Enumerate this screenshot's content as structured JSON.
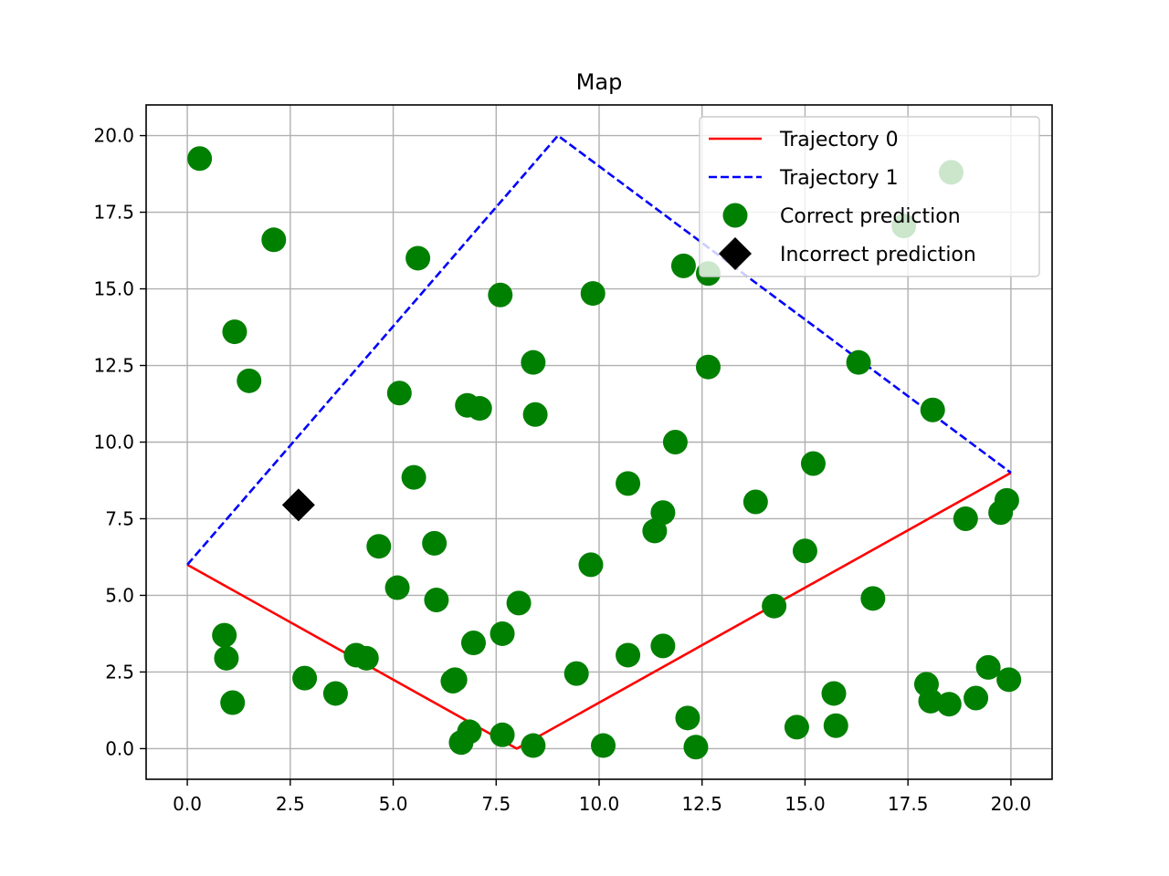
{
  "chart_data": {
    "type": "scatter",
    "title": "Map",
    "xlabel": "",
    "ylabel": "",
    "xlim": [
      -1.0,
      21.0
    ],
    "ylim": [
      -1.0,
      21.0
    ],
    "xticks": [
      "0.0",
      "2.5",
      "5.0",
      "7.5",
      "10.0",
      "12.5",
      "15.0",
      "17.5",
      "20.0"
    ],
    "yticks": [
      "0.0",
      "2.5",
      "5.0",
      "7.5",
      "10.0",
      "12.5",
      "15.0",
      "17.5",
      "20.0"
    ],
    "grid": true,
    "legend_position": "top-right",
    "series": [
      {
        "name": "Trajectory 0",
        "kind": "line",
        "style": "solid",
        "color": "#ff0000",
        "points": [
          [
            0,
            6
          ],
          [
            8,
            0
          ],
          [
            20,
            9
          ]
        ]
      },
      {
        "name": "Trajectory 1",
        "kind": "line",
        "style": "dashed",
        "color": "#0000ff",
        "points": [
          [
            0,
            6
          ],
          [
            9,
            20
          ],
          [
            20,
            9
          ]
        ]
      },
      {
        "name": "Correct prediction",
        "kind": "scatter",
        "marker": "circle",
        "color": "#008000",
        "points": [
          [
            0.3,
            19.25
          ],
          [
            2.1,
            16.6
          ],
          [
            1.15,
            13.6
          ],
          [
            1.5,
            12.0
          ],
          [
            5.6,
            16.0
          ],
          [
            7.6,
            14.8
          ],
          [
            9.85,
            14.85
          ],
          [
            8.4,
            12.6
          ],
          [
            5.15,
            11.6
          ],
          [
            6.8,
            11.2
          ],
          [
            7.1,
            11.1
          ],
          [
            8.45,
            10.9
          ],
          [
            11.85,
            10.0
          ],
          [
            12.05,
            15.75
          ],
          [
            12.65,
            15.5
          ],
          [
            12.65,
            12.45
          ],
          [
            17.4,
            17.05
          ],
          [
            18.55,
            18.8
          ],
          [
            16.3,
            12.6
          ],
          [
            18.1,
            11.05
          ],
          [
            5.5,
            8.85
          ],
          [
            10.7,
            8.65
          ],
          [
            11.55,
            7.7
          ],
          [
            11.35,
            7.1
          ],
          [
            13.8,
            8.05
          ],
          [
            15.2,
            9.3
          ],
          [
            15.0,
            6.45
          ],
          [
            19.9,
            8.1
          ],
          [
            19.75,
            7.7
          ],
          [
            18.9,
            7.5
          ],
          [
            4.65,
            6.6
          ],
          [
            6.0,
            6.7
          ],
          [
            9.8,
            6.0
          ],
          [
            5.1,
            5.25
          ],
          [
            6.05,
            4.85
          ],
          [
            8.05,
            4.75
          ],
          [
            14.25,
            4.65
          ],
          [
            16.65,
            4.9
          ],
          [
            0.9,
            3.7
          ],
          [
            0.95,
            2.95
          ],
          [
            1.1,
            1.5
          ],
          [
            2.85,
            2.3
          ],
          [
            3.6,
            1.8
          ],
          [
            4.1,
            3.05
          ],
          [
            4.35,
            2.95
          ],
          [
            6.45,
            2.2
          ],
          [
            6.5,
            2.25
          ],
          [
            6.95,
            3.45
          ],
          [
            7.65,
            3.75
          ],
          [
            9.45,
            2.45
          ],
          [
            10.7,
            3.05
          ],
          [
            11.55,
            3.35
          ],
          [
            12.15,
            1.0
          ],
          [
            15.7,
            1.8
          ],
          [
            15.75,
            0.75
          ],
          [
            14.8,
            0.7
          ],
          [
            6.65,
            0.2
          ],
          [
            6.85,
            0.55
          ],
          [
            7.65,
            0.45
          ],
          [
            8.4,
            0.1
          ],
          [
            10.1,
            0.1
          ],
          [
            12.35,
            0.05
          ],
          [
            17.95,
            2.1
          ],
          [
            18.05,
            1.55
          ],
          [
            18.5,
            1.45
          ],
          [
            19.15,
            1.65
          ],
          [
            19.45,
            2.65
          ],
          [
            19.95,
            2.25
          ]
        ]
      },
      {
        "name": "Incorrect prediction",
        "kind": "scatter",
        "marker": "diamond",
        "color": "#000000",
        "points": [
          [
            2.7,
            7.95
          ],
          [
            13.3,
            16.15
          ]
        ]
      }
    ]
  }
}
